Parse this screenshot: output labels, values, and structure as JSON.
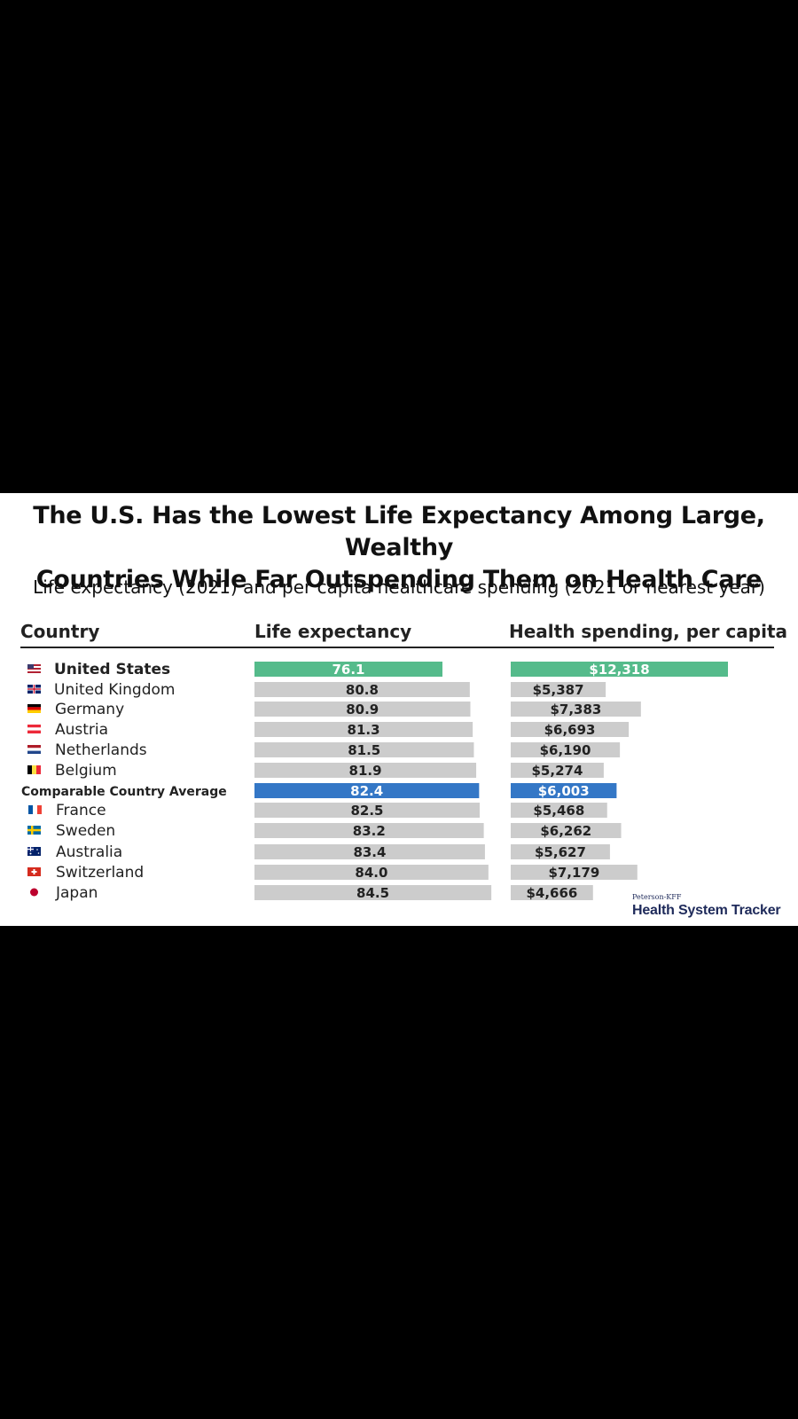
{
  "title_line1": "The U.S. Has the Lowest Life Expectancy Among Large, Wealthy",
  "title_line2": "Countries While Far Outspending Them on Health Care",
  "subtitle": "Life expectancy (2021) and per capita healthcare spending (2021 or nearest year)",
  "headers": {
    "country": "Country",
    "life": "Life expectancy",
    "spend": "Health spending, per capita"
  },
  "source": {
    "small": "Peterson-KFF",
    "big": "Health System Tracker"
  },
  "colors": {
    "highlight_us": "#55bb8b",
    "highlight_avg": "#3477c6",
    "default_bar": "#cccccc"
  },
  "chart_data": {
    "type": "bar",
    "categories": [
      "United States",
      "United Kingdom",
      "Germany",
      "Austria",
      "Netherlands",
      "Belgium",
      "Comparable Country Average",
      "France",
      "Sweden",
      "Australia",
      "Switzerland",
      "Japan"
    ],
    "flag_icons": [
      "flag-us-icon",
      "flag-uk-icon",
      "flag-de-icon",
      "flag-at-icon",
      "flag-nl-icon",
      "flag-be-icon",
      "",
      "flag-fr-icon",
      "flag-se-icon",
      "flag-au-icon",
      "flag-ch-icon",
      "flag-jp-icon"
    ],
    "series": [
      {
        "name": "Life expectancy",
        "values": [
          76.1,
          80.8,
          80.9,
          81.3,
          81.5,
          81.9,
          82.4,
          82.5,
          83.2,
          83.4,
          84.0,
          84.5
        ],
        "labels": [
          "76.1",
          "80.8",
          "80.9",
          "81.3",
          "81.5",
          "81.9",
          "82.4",
          "82.5",
          "83.2",
          "83.4",
          "84.0",
          "84.5"
        ]
      },
      {
        "name": "Health spending, per capita",
        "values": [
          12318,
          5387,
          7383,
          6693,
          6190,
          5274,
          6003,
          5468,
          6262,
          5627,
          7179,
          4666
        ],
        "labels": [
          "$12,318",
          "$5,387",
          "$7,383",
          "$6,693",
          "$6,190",
          "$5,274",
          "$6,003",
          "$5,468",
          "$6,262",
          "$5,627",
          "$7,179",
          "$4,666"
        ]
      }
    ]
  }
}
